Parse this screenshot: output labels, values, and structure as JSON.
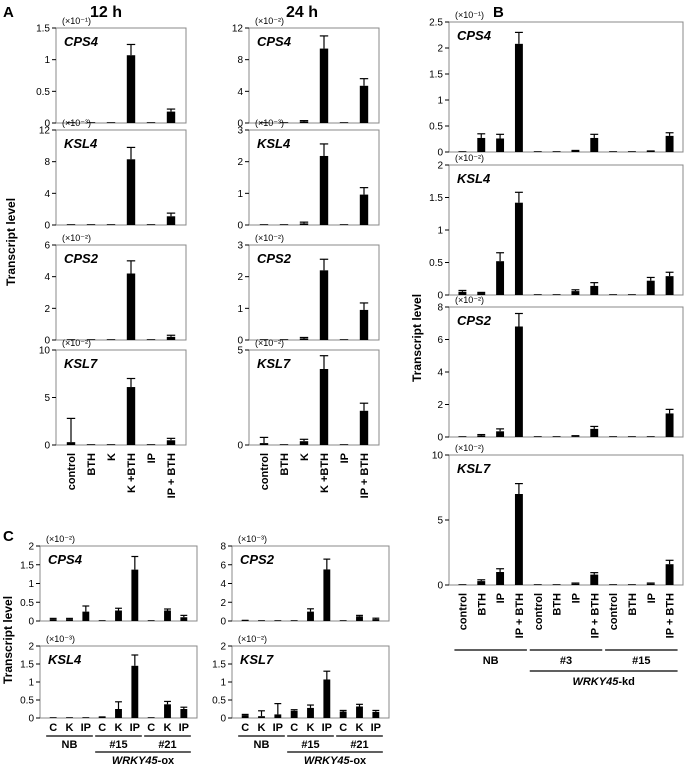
{
  "panel_letters": {
    "a": "A",
    "b": "B",
    "c": "C"
  },
  "time_headers": [
    "12 h",
    "24 h"
  ],
  "y_axis_label": "Transcript level",
  "panel_a": {
    "categories": [
      "control",
      "BTH",
      "K",
      "K +BTH",
      "IP",
      "IP + BTH"
    ],
    "charts": [
      {
        "gene": "CPS4",
        "time": "12 h",
        "scale": "(×10⁻¹)",
        "ylim": [
          0,
          1.5
        ],
        "ticks": [
          0,
          0.5,
          1,
          1.5
        ],
        "tick_labels": [
          "0",
          "0.5",
          "1",
          "1.5"
        ],
        "values": [
          0,
          0,
          0,
          1.07,
          0,
          0.18
        ],
        "errors": [
          0,
          0,
          0,
          0.17,
          0,
          0.04
        ]
      },
      {
        "gene": "CPS4",
        "time": "24 h",
        "scale": "(×10⁻²)",
        "ylim": [
          0,
          12
        ],
        "ticks": [
          0,
          4,
          8,
          12
        ],
        "tick_labels": [
          "0",
          "4",
          "8",
          "12"
        ],
        "values": [
          0,
          0,
          0.2,
          9.4,
          0,
          4.7
        ],
        "errors": [
          0,
          0,
          0.1,
          1.6,
          0,
          0.9
        ]
      },
      {
        "gene": "KSL4",
        "time": "12 h",
        "scale": "(×10⁻³)",
        "ylim": [
          0,
          12
        ],
        "ticks": [
          0,
          4,
          8,
          12
        ],
        "tick_labels": [
          "0",
          "4",
          "8",
          "12"
        ],
        "values": [
          0,
          0,
          0.1,
          8.3,
          0,
          1.1
        ],
        "errors": [
          0,
          0,
          0,
          1.5,
          0,
          0.4
        ]
      },
      {
        "gene": "KSL4",
        "time": "24 h",
        "scale": "(×10⁻³)",
        "ylim": [
          0,
          3
        ],
        "ticks": [
          0,
          1,
          2,
          3
        ],
        "tick_labels": [
          "0",
          "1",
          "2",
          "3"
        ],
        "values": [
          0,
          0,
          0.05,
          2.18,
          0,
          0.96
        ],
        "errors": [
          0,
          0,
          0.04,
          0.38,
          0,
          0.22
        ]
      },
      {
        "gene": "CPS2",
        "time": "12 h",
        "scale": "(×10⁻²)",
        "ylim": [
          0,
          6
        ],
        "ticks": [
          0,
          2,
          4,
          6
        ],
        "tick_labels": [
          "0",
          "2",
          "4",
          "6"
        ],
        "values": [
          0,
          0,
          0,
          4.2,
          0,
          0.2
        ],
        "errors": [
          0,
          0,
          0,
          0.8,
          0,
          0.1
        ]
      },
      {
        "gene": "CPS2",
        "time": "24 h",
        "scale": "(×10⁻²)",
        "ylim": [
          0,
          3
        ],
        "ticks": [
          0,
          1,
          2,
          3
        ],
        "tick_labels": [
          "0",
          "1",
          "2",
          "3"
        ],
        "values": [
          0,
          0,
          0.05,
          2.2,
          0,
          0.95
        ],
        "errors": [
          0,
          0,
          0.03,
          0.35,
          0,
          0.22
        ]
      },
      {
        "gene": "KSL7",
        "time": "12 h",
        "scale": "(×10⁻²)",
        "ylim": [
          0,
          10
        ],
        "ticks": [
          0,
          5,
          10
        ],
        "tick_labels": [
          "0",
          "5",
          "10"
        ],
        "values": [
          0.3,
          0,
          0,
          6.1,
          0,
          0.5
        ],
        "errors": [
          2.5,
          0,
          0,
          0.9,
          0,
          0.2
        ]
      },
      {
        "gene": "KSL7",
        "time": "24 h",
        "scale": "(×10⁻²)",
        "ylim": [
          0,
          5
        ],
        "ticks": [
          0,
          5
        ],
        "tick_labels": [
          "0",
          "5"
        ],
        "values": [
          0.1,
          0,
          0.2,
          4.0,
          0,
          1.8
        ],
        "errors": [
          0.3,
          0,
          0.1,
          0.7,
          0,
          0.4
        ]
      }
    ]
  },
  "panel_b": {
    "categories": [
      "control",
      "BTH",
      "IP",
      "IP + BTH",
      "control",
      "BTH",
      "IP",
      "IP + BTH",
      "control",
      "BTH",
      "IP",
      "IP + BTH"
    ],
    "groups": [
      "NB",
      "#3",
      "#15"
    ],
    "group_label_italic": "WRKY45",
    "group_label_suffix": "-kd",
    "charts": [
      {
        "gene": "CPS4",
        "scale": "(×10⁻¹)",
        "ylim": [
          0,
          2.5
        ],
        "ticks": [
          0,
          0.5,
          1,
          1.5,
          2,
          2.5
        ],
        "tick_labels": [
          "0",
          "0.5",
          "1",
          "1.5",
          "2",
          "2.5"
        ],
        "values": [
          0,
          0.27,
          0.26,
          2.08,
          0,
          0,
          0.02,
          0.27,
          0,
          0,
          0.01,
          0.31
        ],
        "errors": [
          0,
          0.08,
          0.08,
          0.22,
          0,
          0,
          0.01,
          0.07,
          0,
          0,
          0.01,
          0.06
        ]
      },
      {
        "gene": "KSL4",
        "scale": "(×10⁻²)",
        "ylim": [
          0,
          2
        ],
        "ticks": [
          0,
          0.5,
          1,
          1.5,
          2
        ],
        "tick_labels": [
          "0",
          "0.5",
          "1",
          "1.5",
          "2"
        ],
        "values": [
          0.05,
          0.03,
          0.52,
          1.42,
          0,
          0,
          0.06,
          0.14,
          0,
          0,
          0.22,
          0.29
        ],
        "errors": [
          0.02,
          0.01,
          0.13,
          0.16,
          0,
          0,
          0.02,
          0.05,
          0,
          0,
          0.05,
          0.06
        ]
      },
      {
        "gene": "CPS2",
        "scale": "(×10⁻²)",
        "ylim": [
          0,
          8
        ],
        "ticks": [
          0,
          2,
          4,
          6,
          8
        ],
        "tick_labels": [
          "0",
          "2",
          "4",
          "6",
          "8"
        ],
        "values": [
          0,
          0.1,
          0.35,
          6.8,
          0,
          0,
          0.05,
          0.5,
          0,
          0,
          0,
          1.45
        ],
        "errors": [
          0,
          0.05,
          0.15,
          0.8,
          0,
          0,
          0.03,
          0.15,
          0,
          0,
          0,
          0.25
        ]
      },
      {
        "gene": "KSL7",
        "scale": "(×10⁻²)",
        "ylim": [
          0,
          10
        ],
        "ticks": [
          0,
          5,
          10
        ],
        "tick_labels": [
          "0",
          "5",
          "10"
        ],
        "values": [
          0,
          0.3,
          1.0,
          7.0,
          0,
          0,
          0.1,
          0.8,
          0,
          0,
          0.1,
          1.6
        ],
        "errors": [
          0,
          0.1,
          0.25,
          0.8,
          0,
          0,
          0.05,
          0.15,
          0,
          0,
          0.05,
          0.3
        ]
      }
    ]
  },
  "panel_c": {
    "categories": [
      "C",
      "K",
      "IP",
      "C",
      "K",
      "IP",
      "C",
      "K",
      "IP"
    ],
    "groups": [
      "NB",
      "#15",
      "#21"
    ],
    "group_label_italic": "WRKY45",
    "group_label_suffix": "-ox",
    "charts": [
      {
        "gene": "CPS4",
        "scale": "(×10⁻²)",
        "ylim": [
          0,
          2
        ],
        "ticks": [
          0,
          0.5,
          1,
          1.5,
          2
        ],
        "tick_labels": [
          "0",
          "0.5",
          "1",
          "1.5",
          "2"
        ],
        "values": [
          0.05,
          0.05,
          0.25,
          0,
          0.28,
          1.37,
          0,
          0.28,
          0.1
        ],
        "errors": [
          0.02,
          0.02,
          0.15,
          0,
          0.06,
          0.35,
          0,
          0.04,
          0.05
        ]
      },
      {
        "gene": "CPS2",
        "scale": "(×10⁻³)",
        "ylim": [
          0,
          8
        ],
        "ticks": [
          0,
          2,
          4,
          6,
          8
        ],
        "tick_labels": [
          "0",
          "2",
          "4",
          "6",
          "8"
        ],
        "values": [
          0.05,
          0,
          0,
          0,
          1.0,
          5.5,
          0,
          0.5,
          0.2
        ],
        "errors": [
          0.02,
          0,
          0,
          0,
          0.3,
          1.1,
          0,
          0.1,
          0.1
        ]
      },
      {
        "gene": "KSL4",
        "scale": "(×10⁻³)",
        "ylim": [
          0,
          2
        ],
        "ticks": [
          0,
          0.5,
          1,
          1.5,
          2
        ],
        "tick_labels": [
          "0",
          "0.5",
          "1",
          "1.5",
          "2"
        ],
        "values": [
          0,
          0,
          0,
          0.02,
          0.25,
          1.45,
          0,
          0.38,
          0.25
        ],
        "errors": [
          0,
          0,
          0,
          0.01,
          0.2,
          0.3,
          0,
          0.08,
          0.05
        ]
      },
      {
        "gene": "KSL7",
        "scale": "(×10⁻²)",
        "ylim": [
          0,
          2
        ],
        "ticks": [
          0,
          0.5,
          1,
          1.5,
          2
        ],
        "tick_labels": [
          "0",
          "0.5",
          "1",
          "1.5",
          "2"
        ],
        "values": [
          0.08,
          0.05,
          0.1,
          0.2,
          0.28,
          1.07,
          0.18,
          0.32,
          0.17
        ],
        "errors": [
          0.02,
          0.15,
          0.3,
          0.03,
          0.08,
          0.23,
          0.03,
          0.06,
          0.04
        ]
      }
    ]
  },
  "chart_data": [
    {
      "type": "bar",
      "panel": "A",
      "title": "CPS4 (12 h)",
      "ylabel": "Transcript level (×10⁻¹)",
      "categories": [
        "control",
        "BTH",
        "K",
        "K +BTH",
        "IP",
        "IP + BTH"
      ],
      "values": [
        0,
        0,
        0,
        1.07,
        0,
        0.18
      ],
      "ylim": [
        0,
        1.5
      ]
    },
    {
      "type": "bar",
      "panel": "A",
      "title": "CPS4 (24 h)",
      "ylabel": "Transcript level (×10⁻²)",
      "categories": [
        "control",
        "BTH",
        "K",
        "K +BTH",
        "IP",
        "IP + BTH"
      ],
      "values": [
        0,
        0,
        0.2,
        9.4,
        0,
        4.7
      ],
      "ylim": [
        0,
        12
      ]
    },
    {
      "type": "bar",
      "panel": "A",
      "title": "KSL4 (12 h)",
      "ylabel": "Transcript level (×10⁻³)",
      "categories": [
        "control",
        "BTH",
        "K",
        "K +BTH",
        "IP",
        "IP + BTH"
      ],
      "values": [
        0,
        0,
        0.1,
        8.3,
        0,
        1.1
      ],
      "ylim": [
        0,
        12
      ]
    },
    {
      "type": "bar",
      "panel": "A",
      "title": "KSL4 (24 h)",
      "ylabel": "Transcript level (×10⁻³)",
      "categories": [
        "control",
        "BTH",
        "K",
        "K +BTH",
        "IP",
        "IP + BTH"
      ],
      "values": [
        0,
        0,
        0.05,
        2.18,
        0,
        0.96
      ],
      "ylim": [
        0,
        3
      ]
    },
    {
      "type": "bar",
      "panel": "A",
      "title": "CPS2 (12 h)",
      "ylabel": "Transcript level (×10⁻²)",
      "categories": [
        "control",
        "BTH",
        "K",
        "K +BTH",
        "IP",
        "IP + BTH"
      ],
      "values": [
        0,
        0,
        0,
        4.2,
        0,
        0.2
      ],
      "ylim": [
        0,
        6
      ]
    },
    {
      "type": "bar",
      "panel": "A",
      "title": "CPS2 (24 h)",
      "ylabel": "Transcript level (×10⁻²)",
      "categories": [
        "control",
        "BTH",
        "K",
        "K +BTH",
        "IP",
        "IP + BTH"
      ],
      "values": [
        0,
        0,
        0.05,
        2.2,
        0,
        0.95
      ],
      "ylim": [
        0,
        3
      ]
    },
    {
      "type": "bar",
      "panel": "A",
      "title": "KSL7 (12 h)",
      "ylabel": "Transcript level (×10⁻²)",
      "categories": [
        "control",
        "BTH",
        "K",
        "K +BTH",
        "IP",
        "IP + BTH"
      ],
      "values": [
        0.3,
        0,
        0,
        6.1,
        0,
        0.5
      ],
      "ylim": [
        0,
        10
      ]
    },
    {
      "type": "bar",
      "panel": "A",
      "title": "KSL7 (24 h)",
      "ylabel": "Transcript level (×10⁻²)",
      "categories": [
        "control",
        "BTH",
        "K",
        "K +BTH",
        "IP",
        "IP + BTH"
      ],
      "values": [
        0.1,
        0,
        0.2,
        4.0,
        0,
        1.8
      ],
      "ylim": [
        0,
        5
      ]
    },
    {
      "type": "bar",
      "panel": "B",
      "title": "CPS4",
      "ylabel": "Transcript level (×10⁻¹)",
      "categories": [
        "NB control",
        "NB BTH",
        "NB IP",
        "NB IP + BTH",
        "#3 control",
        "#3 BTH",
        "#3 IP",
        "#3 IP + BTH",
        "#15 control",
        "#15 BTH",
        "#15 IP",
        "#15 IP + BTH"
      ],
      "values": [
        0,
        0.27,
        0.26,
        2.08,
        0,
        0,
        0.02,
        0.27,
        0,
        0,
        0.01,
        0.31
      ],
      "ylim": [
        0,
        2.5
      ]
    },
    {
      "type": "bar",
      "panel": "B",
      "title": "KSL4",
      "ylabel": "Transcript level (×10⁻²)",
      "categories": [
        "NB control",
        "NB BTH",
        "NB IP",
        "NB IP + BTH",
        "#3 control",
        "#3 BTH",
        "#3 IP",
        "#3 IP + BTH",
        "#15 control",
        "#15 BTH",
        "#15 IP",
        "#15 IP + BTH"
      ],
      "values": [
        0.05,
        0.03,
        0.52,
        1.42,
        0,
        0,
        0.06,
        0.14,
        0,
        0,
        0.22,
        0.29
      ],
      "ylim": [
        0,
        2
      ]
    },
    {
      "type": "bar",
      "panel": "B",
      "title": "CPS2",
      "ylabel": "Transcript level (×10⁻²)",
      "categories": [
        "NB control",
        "NB BTH",
        "NB IP",
        "NB IP + BTH",
        "#3 control",
        "#3 BTH",
        "#3 IP",
        "#3 IP + BTH",
        "#15 control",
        "#15 BTH",
        "#15 IP",
        "#15 IP + BTH"
      ],
      "values": [
        0,
        0.1,
        0.35,
        6.8,
        0,
        0,
        0.05,
        0.5,
        0,
        0,
        0,
        1.45
      ],
      "ylim": [
        0,
        8
      ]
    },
    {
      "type": "bar",
      "panel": "B",
      "title": "KSL7",
      "ylabel": "Transcript level (×10⁻²)",
      "categories": [
        "NB control",
        "NB BTH",
        "NB IP",
        "NB IP + BTH",
        "#3 control",
        "#3 BTH",
        "#3 IP",
        "#3 IP + BTH",
        "#15 control",
        "#15 BTH",
        "#15 IP",
        "#15 IP + BTH"
      ],
      "values": [
        0,
        0.3,
        1.0,
        7.0,
        0,
        0,
        0.1,
        0.8,
        0,
        0,
        0.1,
        1.6
      ],
      "ylim": [
        0,
        10
      ]
    },
    {
      "type": "bar",
      "panel": "C",
      "title": "CPS4",
      "ylabel": "Transcript level (×10⁻²)",
      "categories": [
        "NB C",
        "NB K",
        "NB IP",
        "#15 C",
        "#15 K",
        "#15 IP",
        "#21 C",
        "#21 K",
        "#21 IP"
      ],
      "values": [
        0.05,
        0.05,
        0.25,
        0,
        0.28,
        1.37,
        0,
        0.28,
        0.1
      ],
      "ylim": [
        0,
        2
      ]
    },
    {
      "type": "bar",
      "panel": "C",
      "title": "CPS2",
      "ylabel": "Transcript level (×10⁻³)",
      "categories": [
        "NB C",
        "NB K",
        "NB IP",
        "#15 C",
        "#15 K",
        "#15 IP",
        "#21 C",
        "#21 K",
        "#21 IP"
      ],
      "values": [
        0.05,
        0,
        0,
        0,
        1.0,
        5.5,
        0,
        0.5,
        0.2
      ],
      "ylim": [
        0,
        8
      ]
    },
    {
      "type": "bar",
      "panel": "C",
      "title": "KSL4",
      "ylabel": "Transcript level (×10⁻³)",
      "categories": [
        "NB C",
        "NB K",
        "NB IP",
        "#15 C",
        "#15 K",
        "#15 IP",
        "#21 C",
        "#21 K",
        "#21 IP"
      ],
      "values": [
        0,
        0,
        0,
        0.02,
        0.25,
        1.45,
        0,
        0.38,
        0.25
      ],
      "ylim": [
        0,
        2
      ]
    },
    {
      "type": "bar",
      "panel": "C",
      "title": "KSL7",
      "ylabel": "Transcript level (×10⁻²)",
      "categories": [
        "NB C",
        "NB K",
        "NB IP",
        "#15 C",
        "#15 K",
        "#15 IP",
        "#21 C",
        "#21 K",
        "#21 IP"
      ],
      "values": [
        0.08,
        0.05,
        0.1,
        0.2,
        0.28,
        1.07,
        0.18,
        0.32,
        0.17
      ],
      "ylim": [
        0,
        2
      ]
    }
  ]
}
